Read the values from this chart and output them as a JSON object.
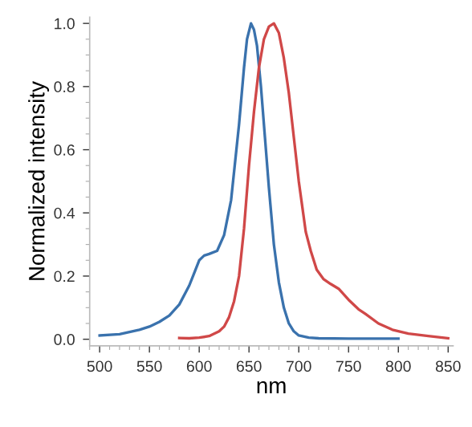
{
  "chart_data": {
    "type": "line",
    "xlabel": "nm",
    "ylabel": "Normalized intensity",
    "xlim": [
      490,
      855
    ],
    "ylim": [
      -0.021,
      1.02
    ],
    "xticks": [
      500,
      550,
      600,
      650,
      700,
      750,
      800,
      850
    ],
    "yticks": [
      {
        "value": 0,
        "label": "0.0"
      },
      0.2,
      0.4,
      0.6,
      0.8,
      {
        "value": 1,
        "label": "1.0"
      }
    ],
    "grid": false,
    "legend": false,
    "marker": "none",
    "line_style": "solid",
    "series": [
      {
        "color": "#3a72ad",
        "x": [
          500,
          520,
          540,
          550,
          560,
          570,
          580,
          590,
          595,
          600,
          605,
          610,
          618,
          625,
          632,
          640,
          645,
          648,
          652,
          655,
          658,
          662,
          666,
          670,
          675,
          680,
          685,
          690,
          695,
          700,
          710,
          720,
          750,
          800
        ],
        "values": [
          0.012,
          0.016,
          0.03,
          0.04,
          0.055,
          0.075,
          0.11,
          0.17,
          0.21,
          0.25,
          0.265,
          0.27,
          0.28,
          0.33,
          0.44,
          0.68,
          0.86,
          0.95,
          1.0,
          0.98,
          0.93,
          0.8,
          0.64,
          0.48,
          0.3,
          0.18,
          0.1,
          0.05,
          0.025,
          0.012,
          0.005,
          0.003,
          0.002,
          0.002
        ]
      },
      {
        "color": "#d04848",
        "x": [
          580,
          590,
          600,
          610,
          620,
          625,
          630,
          635,
          640,
          645,
          650,
          655,
          660,
          665,
          670,
          675,
          680,
          685,
          690,
          695,
          700,
          707,
          712,
          718,
          725,
          732,
          740,
          750,
          760,
          767,
          780,
          794,
          810,
          830,
          850
        ],
        "values": [
          0.004,
          0.003,
          0.005,
          0.01,
          0.025,
          0.04,
          0.07,
          0.12,
          0.2,
          0.35,
          0.55,
          0.72,
          0.86,
          0.95,
          0.99,
          1.0,
          0.97,
          0.89,
          0.78,
          0.64,
          0.5,
          0.34,
          0.28,
          0.22,
          0.19,
          0.175,
          0.16,
          0.125,
          0.095,
          0.08,
          0.05,
          0.03,
          0.018,
          0.01,
          0.003
        ]
      }
    ]
  }
}
